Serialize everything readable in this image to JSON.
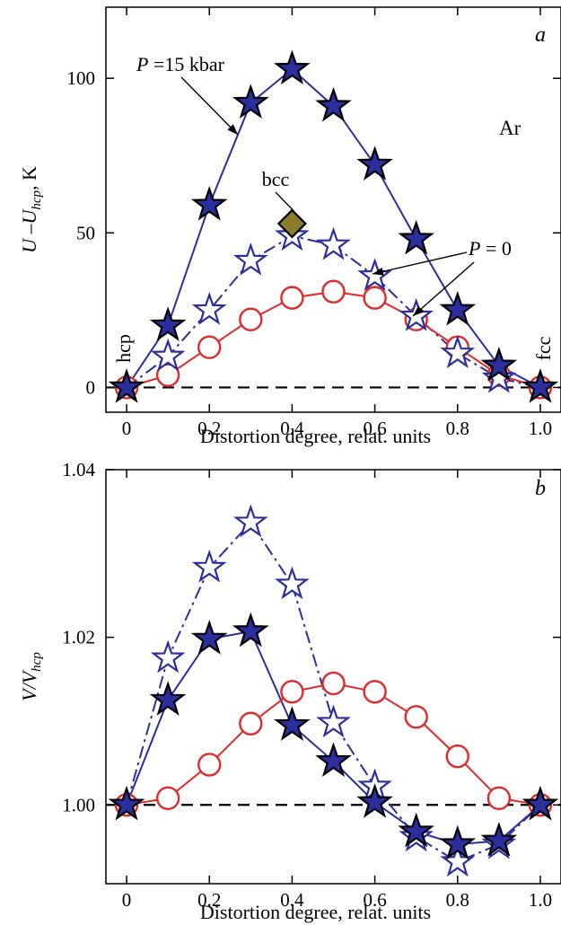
{
  "chart_data": [
    {
      "type": "line",
      "panel_label": "a",
      "element": "Ar",
      "xlabel": "Distortion degree, relat. units",
      "ylabel": "U –U",
      "ylabel_sub": "hcp",
      "ylabel_unit": ", K",
      "xlim": [
        -0.05,
        1.05
      ],
      "ylim": [
        -8,
        123
      ],
      "xticks": [
        0,
        0.2,
        0.4,
        0.6,
        0.8,
        1.0
      ],
      "xtick_labels": [
        "0",
        "0.2",
        "0.4",
        "0.6",
        "0.8",
        "1.0"
      ],
      "yticks": [
        0,
        50,
        100
      ],
      "ytick_labels": [
        "0",
        "50",
        "100"
      ],
      "x": [
        0,
        0.1,
        0.2,
        0.3,
        0.4,
        0.5,
        0.6,
        0.7,
        0.8,
        0.9,
        1.0
      ],
      "series": [
        {
          "label": "P =15 kbar",
          "marker": "star-filled",
          "color": "#2b2f9e",
          "values": [
            0,
            20,
            59,
            92,
            103,
            91,
            72,
            48,
            25,
            7,
            0
          ]
        },
        {
          "marker": "star-open",
          "color": "#2b2f9e",
          "dashed": true,
          "values": [
            0,
            10,
            25,
            41,
            49,
            46,
            36,
            23,
            11,
            3,
            0
          ]
        },
        {
          "label": "P = 0",
          "marker": "circle-open",
          "color": "#e02a2a",
          "values": [
            0,
            4,
            13,
            22,
            29,
            31,
            29,
            22,
            13,
            4,
            0
          ]
        }
      ],
      "point_annotations": [
        {
          "label": "bcc",
          "x": 0.4,
          "y": 53,
          "marker": "diamond",
          "color": "#8b7a2a"
        }
      ],
      "text_labels": [
        "hcp",
        "fcc"
      ],
      "reference_line": {
        "y": 0,
        "style": "dashed"
      }
    },
    {
      "type": "line",
      "panel_label": "b",
      "xlabel": "Distortion degree, relat. units",
      "ylabel": "V/V",
      "ylabel_sub": "hcp",
      "xlim": [
        -0.05,
        1.05
      ],
      "ylim": [
        0.9906,
        1.04
      ],
      "xticks": [
        0,
        0.2,
        0.4,
        0.6,
        0.8,
        1.0
      ],
      "xtick_labels": [
        "0",
        "0.2",
        "0.4",
        "0.6",
        "0.8",
        "1.0"
      ],
      "yticks": [
        1.0,
        1.02,
        1.04
      ],
      "ytick_labels": [
        "1.00",
        "1.02",
        "1.04"
      ],
      "x": [
        0,
        0.1,
        0.2,
        0.3,
        0.4,
        0.5,
        0.6,
        0.7,
        0.8,
        0.9,
        1.0
      ],
      "series": [
        {
          "marker": "star-filled",
          "color": "#2b2f9e",
          "values": [
            1.0,
            1.0125,
            1.0198,
            1.0207,
            1.0095,
            1.0052,
            1.0003,
            0.9968,
            0.9953,
            0.9957,
            1.0
          ]
        },
        {
          "marker": "star-open",
          "color": "#2b2f9e",
          "dashed": true,
          "values": [
            1.0,
            1.0175,
            1.0283,
            1.0337,
            1.0263,
            1.0098,
            1.0022,
            0.9962,
            0.9932,
            0.9953,
            1.0
          ]
        },
        {
          "marker": "circle-open",
          "color": "#e02a2a",
          "values": [
            1.0,
            1.0008,
            1.0048,
            1.0097,
            1.0135,
            1.0145,
            1.0135,
            1.0105,
            1.0058,
            1.0008,
            1.0
          ]
        }
      ],
      "reference_line": {
        "y": 1.0,
        "style": "dashed"
      }
    }
  ]
}
